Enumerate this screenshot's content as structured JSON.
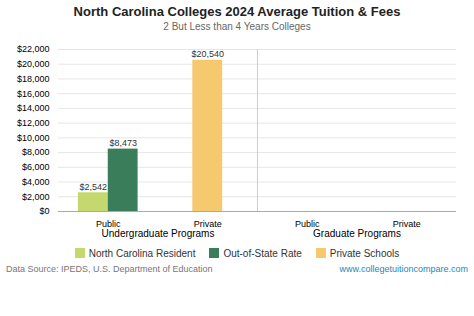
{
  "chart_data": {
    "type": "bar",
    "title": "North Carolina Colleges 2024 Average Tuition & Fees",
    "subtitle": "2 But Less than 4 Years  Colleges",
    "categories": [
      "Public",
      "Private",
      "Public",
      "Private"
    ],
    "groups": [
      "Undergraduate Programs",
      "Undergraduate Programs",
      "Graduate Programs",
      "Graduate Programs"
    ],
    "series": [
      {
        "name": "North Carolina Resident",
        "color": "#c5d86d",
        "values": [
          2542,
          null,
          null,
          null
        ],
        "value_labels": [
          "$2,542",
          null,
          null,
          null
        ]
      },
      {
        "name": "Out-of-State Rate",
        "color": "#3a7d5a",
        "values": [
          8473,
          null,
          null,
          null
        ],
        "value_labels": [
          "$8,473",
          null,
          null,
          null
        ]
      },
      {
        "name": "Private Schools",
        "color": "#f6c96e",
        "values": [
          null,
          20540,
          null,
          null
        ],
        "value_labels": [
          null,
          "$20,540",
          null,
          null
        ]
      }
    ],
    "ylim": [
      0,
      22000
    ],
    "yticks": [
      {
        "value": 0,
        "label": "$0"
      },
      {
        "value": 2000,
        "label": "$2,000"
      },
      {
        "value": 4000,
        "label": "$4,000"
      },
      {
        "value": 6000,
        "label": "$6,000"
      },
      {
        "value": 8000,
        "label": "$8,000"
      },
      {
        "value": 10000,
        "label": "$10,000"
      },
      {
        "value": 12000,
        "label": "$12,000"
      },
      {
        "value": 14000,
        "label": "$14,000"
      },
      {
        "value": 16000,
        "label": "$16,000"
      },
      {
        "value": 18000,
        "label": "$18,000"
      },
      {
        "value": 20000,
        "label": "$20,000"
      },
      {
        "value": 22000,
        "label": "$22,000"
      }
    ],
    "grid": true,
    "data_labels": true,
    "legend": "bottom",
    "source": "Data Source: IPEDS, U.S. Department of Education",
    "website": "www.collegetuitioncompare.com"
  }
}
